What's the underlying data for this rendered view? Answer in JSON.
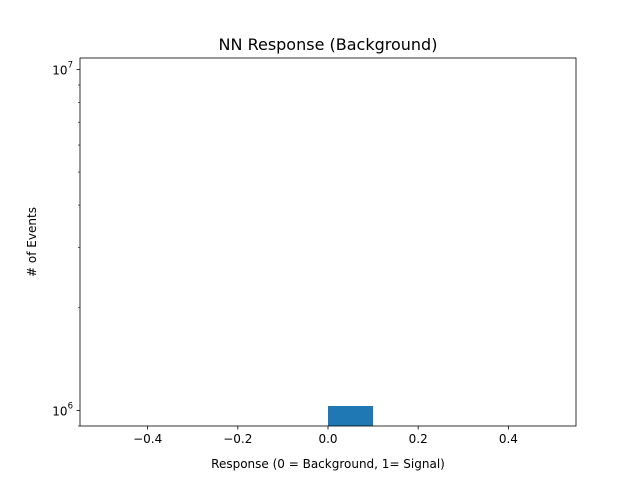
{
  "chart_data": {
    "type": "bar",
    "title": "NN Response (Background)",
    "xlabel": "Response (0 = Background, 1= Signal)",
    "ylabel": "# of Events",
    "xlim": [
      -0.55,
      0.55
    ],
    "ylim": [
      900000,
      10800000
    ],
    "yscale": "log",
    "grid": false,
    "x_ticks": [
      {
        "value": -0.4,
        "label": "−0.4"
      },
      {
        "value": -0.2,
        "label": "−0.2"
      },
      {
        "value": 0.0,
        "label": "0.0"
      },
      {
        "value": 0.2,
        "label": "0.2"
      },
      {
        "value": 0.4,
        "label": "0.4"
      }
    ],
    "y_ticks": [
      {
        "value": 1000000,
        "base": "10",
        "exp": "6"
      },
      {
        "value": 10000000,
        "base": "10",
        "exp": "7"
      }
    ],
    "bars": [
      {
        "x0": 0.0,
        "x1": 0.1,
        "value": 1030000
      }
    ],
    "bar_color": "#1f77b4"
  }
}
